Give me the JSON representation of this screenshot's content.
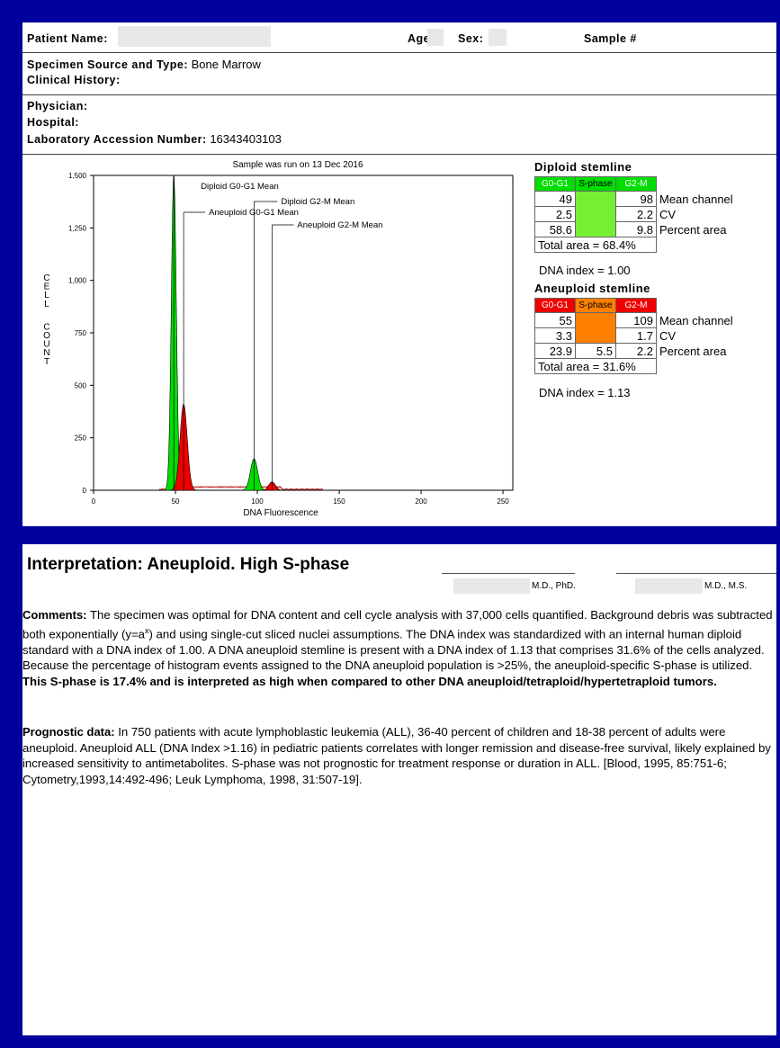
{
  "header": {
    "patient_name_label": "Patient Name:",
    "age_label": "Age:",
    "sex_label": "Sex:",
    "sample_label": "Sample #"
  },
  "specimen": {
    "source_label": "Specimen Source and Type:",
    "source_value": "Bone Marrow",
    "history_label": "Clinical History:"
  },
  "physician": {
    "physician_label": "Physician:",
    "hospital_label": "Hospital:",
    "accession_label": "Laboratory Accession Number:",
    "accession_value": "16343403103"
  },
  "colors": {
    "diploid": "#00dd00",
    "aneuploid": "#ee0000",
    "sphase_aneu": "#ff8000",
    "frame": "#00009e"
  },
  "chart_data": {
    "type": "area",
    "title": "Sample was run on 13 Dec 2016",
    "xlabel": "DNA Fluorescence",
    "ylabel": "CELL COUNT",
    "xlim": [
      0,
      256
    ],
    "ylim": [
      0,
      1500
    ],
    "x_ticks": [
      "0",
      "50",
      "100",
      "150",
      "200",
      "250"
    ],
    "y_ticks": [
      "0",
      "250",
      "500",
      "750",
      "1,000",
      "1,250",
      "1,500"
    ],
    "series": [
      {
        "fill": "#00dd00",
        "peaks": [
          {
            "mean": 49,
            "height": 1500,
            "sd": 1.5
          },
          {
            "mean": 98,
            "height": 150,
            "sd": 2.2
          }
        ]
      },
      {
        "fill": "#ee0000",
        "peaks": [
          {
            "mean": 55,
            "height": 410,
            "sd": 2.2
          },
          {
            "mean": 109,
            "height": 40,
            "sd": 2.0
          }
        ]
      }
    ],
    "annotations": [
      {
        "text": "Diploid G0-G1 Mean",
        "x": 49
      },
      {
        "text": "Diploid G2-M Mean",
        "x": 98
      },
      {
        "text": "Aneuploid G0-G1 Mean",
        "x": 55
      },
      {
        "text": "Aneuploid G2-M Mean",
        "x": 109
      }
    ]
  },
  "diploid": {
    "title": "Diploid stemline",
    "headers": [
      "G0-G1",
      "S-phase",
      "G2-M"
    ],
    "rows": [
      {
        "g0": "49",
        "s": "",
        "g2": "98",
        "label": "Mean channel"
      },
      {
        "g0": "2.5",
        "s": "",
        "g2": "2.2",
        "label": "CV"
      },
      {
        "g0": "58.6",
        "s": "",
        "g2": "9.8",
        "label": "Percent area"
      }
    ],
    "total": "Total area = 68.4%",
    "dna_index": "DNA index = 1.00"
  },
  "aneuploid": {
    "title": "Aneuploid stemline",
    "headers": [
      "G0-G1",
      "S-phase",
      "G2-M"
    ],
    "rows": [
      {
        "g0": "55",
        "s": "",
        "g2": "109",
        "label": "Mean channel"
      },
      {
        "g0": "3.3",
        "s": "",
        "g2": "1.7",
        "label": "CV"
      },
      {
        "g0": "23.9",
        "s": "5.5",
        "g2": "2.2",
        "label": "Percent area"
      }
    ],
    "total": "Total area = 31.6%",
    "dna_index": "DNA index = 1.13"
  },
  "interpretation": {
    "title": "Interpretation: Aneuploid. High S-phase",
    "sig1": "M.D., PhD.",
    "sig2": "M.D., M.S."
  },
  "comments": {
    "label": "Comments:",
    "text1": "The specimen was optimal for DNA content and cell cycle analysis with 37,000 cells quantified. Background debris was subtracted both exponentially (y=a",
    "sup": "x",
    "text2": ") and using single-cut sliced nuclei assumptions. The DNA index was standardized with an internal human diploid standard with a DNA index of 1.00. A DNA aneuploid stemline is present with a DNA index of 1.13 that comprises 31.6% of the cells analyzed. Because the percentage of histogram events assigned to the DNA aneuploid population is >25%, the aneuploid-specific S-phase is utilized. ",
    "bold": "This S-phase is 17.4% and is interpreted as high when compared to other DNA aneuploid/tetraploid/hypertetraploid tumors."
  },
  "prognostic": {
    "label": "Prognostic data:",
    "text": "In 750 patients with acute lymphoblastic leukemia (ALL), 36-40 percent of children and 18-38 percent of adults were aneuploid. Aneuploid ALL (DNA Index >1.16) in pediatric patients correlates with longer remission and disease-free survival, likely explained by increased sensitivity to antimetabolites. S-phase was not prognostic for treatment response or duration in ALL. [Blood, 1995, 85:751-6;  Cytometry,1993,14:492-496;  Leuk Lymphoma, 1998, 31:507-19]."
  }
}
